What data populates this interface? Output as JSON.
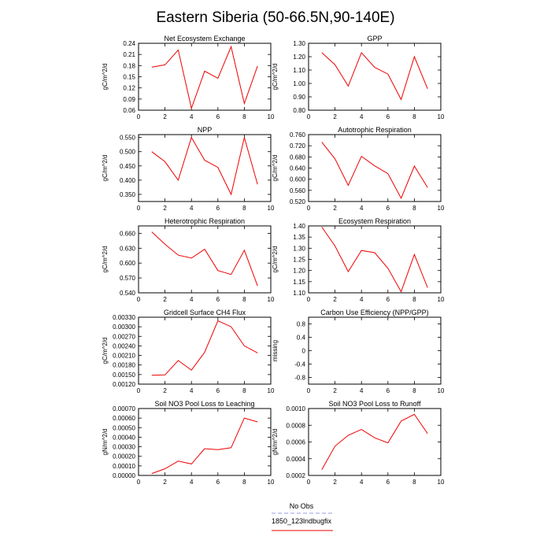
{
  "figure": {
    "title": "Eastern Siberia (50-66.5N,90-140E)"
  },
  "legend": {
    "entries": [
      {
        "label": "No Obs",
        "color": "#9999ee",
        "dashed": true
      },
      {
        "label": "1850_123lndbugfix",
        "color": "#ee0000",
        "dashed": false
      }
    ]
  },
  "chart_data": [
    {
      "type": "line",
      "title": "Net Ecosystem Exchange",
      "ylabel": "gC/m^2/d",
      "xlim": [
        0,
        10
      ],
      "xticks": [
        0,
        2,
        4,
        6,
        8,
        10
      ],
      "ylim": [
        0.06,
        0.24
      ],
      "yticks": [
        "0.06",
        "0.09",
        "0.12",
        "0.15",
        "0.18",
        "0.21",
        "0.24"
      ],
      "series": [
        {
          "x": [
            1,
            2,
            3,
            4,
            5,
            6,
            7,
            8,
            9
          ],
          "y": [
            0.176,
            0.182,
            0.222,
            0.065,
            0.165,
            0.146,
            0.231,
            0.078,
            0.179
          ]
        }
      ]
    },
    {
      "type": "line",
      "title": "GPP",
      "ylabel": "gC/m^2/d",
      "xlim": [
        0,
        10
      ],
      "xticks": [
        0,
        2,
        4,
        6,
        8,
        10
      ],
      "ylim": [
        0.8,
        1.3
      ],
      "yticks": [
        "0.80",
        "0.90",
        "1.00",
        "1.10",
        "1.20",
        "1.30"
      ],
      "series": [
        {
          "x": [
            1,
            2,
            3,
            4,
            5,
            6,
            7,
            8,
            9
          ],
          "y": [
            1.23,
            1.14,
            0.98,
            1.23,
            1.12,
            1.07,
            0.88,
            1.2,
            0.96
          ]
        }
      ]
    },
    {
      "type": "line",
      "title": "NPP",
      "ylabel": "gC/m^2/d",
      "xlim": [
        0,
        10
      ],
      "xticks": [
        0,
        2,
        4,
        6,
        8,
        10
      ],
      "ylim": [
        0.325,
        0.56
      ],
      "yticks": [
        "0.350",
        "0.400",
        "0.450",
        "0.500",
        "0.550"
      ],
      "series": [
        {
          "x": [
            1,
            2,
            3,
            4,
            5,
            6,
            7,
            8,
            9
          ],
          "y": [
            0.5,
            0.465,
            0.4,
            0.55,
            0.47,
            0.445,
            0.35,
            0.55,
            0.385
          ]
        }
      ]
    },
    {
      "type": "line",
      "title": "Autotrophic Respiration",
      "ylabel": "gC/m^2/d",
      "xlim": [
        0,
        10
      ],
      "xticks": [
        0,
        2,
        4,
        6,
        8,
        10
      ],
      "ylim": [
        0.52,
        0.76
      ],
      "yticks": [
        "0.520",
        "0.560",
        "0.600",
        "0.640",
        "0.680",
        "0.720",
        "0.760"
      ],
      "series": [
        {
          "x": [
            1,
            2,
            3,
            4,
            5,
            6,
            7,
            8,
            9
          ],
          "y": [
            0.733,
            0.673,
            0.578,
            0.682,
            0.648,
            0.62,
            0.532,
            0.647,
            0.57
          ]
        }
      ]
    },
    {
      "type": "line",
      "title": "Heterotrophic Respiration",
      "ylabel": "gC/m^2/d",
      "xlim": [
        0,
        10
      ],
      "xticks": [
        0,
        2,
        4,
        6,
        8,
        10
      ],
      "ylim": [
        0.54,
        0.675
      ],
      "yticks": [
        "0.540",
        "0.570",
        "0.600",
        "0.630",
        "0.660"
      ],
      "series": [
        {
          "x": [
            1,
            2,
            3,
            4,
            5,
            6,
            7,
            8,
            9
          ],
          "y": [
            0.663,
            0.638,
            0.616,
            0.61,
            0.628,
            0.585,
            0.577,
            0.626,
            0.554
          ]
        }
      ]
    },
    {
      "type": "line",
      "title": "Ecosystem Respiration",
      "ylabel": "gC/m^2/d",
      "xlim": [
        0,
        10
      ],
      "xticks": [
        0,
        2,
        4,
        6,
        8,
        10
      ],
      "ylim": [
        1.1,
        1.4
      ],
      "yticks": [
        "1.10",
        "1.15",
        "1.20",
        "1.25",
        "1.30",
        "1.35",
        "1.40"
      ],
      "series": [
        {
          "x": [
            1,
            2,
            3,
            4,
            5,
            6,
            7,
            8,
            9
          ],
          "y": [
            1.395,
            1.31,
            1.195,
            1.29,
            1.28,
            1.21,
            1.105,
            1.272,
            1.123
          ]
        }
      ]
    },
    {
      "type": "line",
      "title": "Gridcell Surface CH4 Flux",
      "ylabel": "gC/m^2/d",
      "xlim": [
        0,
        10
      ],
      "xticks": [
        0,
        2,
        4,
        6,
        8,
        10
      ],
      "ylim": [
        0.0012,
        0.0033
      ],
      "yticks": [
        "0.00120",
        "0.00150",
        "0.00180",
        "0.00210",
        "0.00240",
        "0.00270",
        "0.00300",
        "0.00330"
      ],
      "series": [
        {
          "x": [
            1,
            2,
            3,
            4,
            5,
            6,
            7,
            8,
            9
          ],
          "y": [
            0.00148,
            0.00149,
            0.00194,
            0.00164,
            0.0022,
            0.00319,
            0.003,
            0.0024,
            0.00218
          ]
        }
      ]
    },
    {
      "type": "line",
      "title": "Carbon Use Efficiency (NPP/GPP)",
      "ylabel": "missing",
      "xlim": [
        0,
        10
      ],
      "xticks": [
        0,
        2,
        4,
        6,
        8,
        10
      ],
      "ylim": [
        -1.0,
        1.0
      ],
      "yticks": [
        "-0.8",
        "-0.4",
        "0",
        "0.4",
        "0.8"
      ],
      "series": []
    },
    {
      "type": "line",
      "title": "Soil NO3 Pool Loss to Leaching",
      "ylabel": "gN/m^2/d",
      "xlim": [
        0,
        10
      ],
      "xticks": [
        0,
        2,
        4,
        6,
        8,
        10
      ],
      "ylim": [
        0.0,
        0.0007
      ],
      "yticks": [
        "0.00000",
        "0.00010",
        "0.00020",
        "0.00030",
        "0.00040",
        "0.00050",
        "0.00060",
        "0.00070"
      ],
      "series": [
        {
          "x": [
            1,
            2,
            3,
            4,
            5,
            6,
            7,
            8,
            9
          ],
          "y": [
            2e-05,
            7e-05,
            0.00015,
            0.00012,
            0.00028,
            0.00027,
            0.00029,
            0.0006,
            0.00056
          ]
        }
      ]
    },
    {
      "type": "line",
      "title": "Soil NO3 Pool Loss to Runoff",
      "ylabel": "gN/m^2/d",
      "xlim": [
        0,
        10
      ],
      "xticks": [
        0,
        2,
        4,
        6,
        8,
        10
      ],
      "ylim": [
        0.0002,
        0.001
      ],
      "yticks": [
        "0.0002",
        "0.0004",
        "0.0006",
        "0.0008",
        "0.0010"
      ],
      "series": [
        {
          "x": [
            1,
            2,
            3,
            4,
            5,
            6,
            7,
            8,
            9
          ],
          "y": [
            0.00027,
            0.00055,
            0.00068,
            0.00075,
            0.00065,
            0.00059,
            0.00085,
            0.00093,
            0.0007
          ]
        }
      ]
    }
  ]
}
